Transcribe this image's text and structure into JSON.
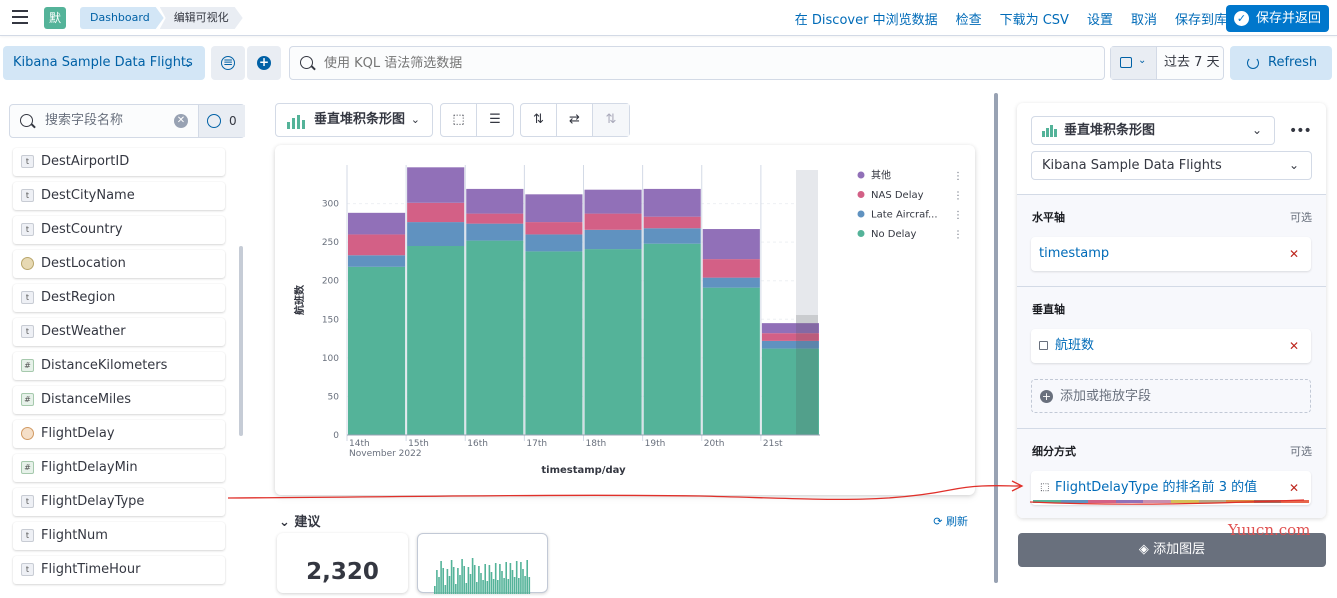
{
  "header": {
    "app_badge": "默",
    "breadcrumbs": [
      "Dashboard",
      "编辑可视化"
    ],
    "links": [
      "在 Discover 中浏览数据",
      "检查",
      "下载为 CSV",
      "设置",
      "取消",
      "保存到库"
    ],
    "save_return": "保存并返回"
  },
  "filterbar": {
    "data_view": "Kibana Sample Data Flights",
    "query_placeholder": "使用 KQL 语法筛选数据",
    "time_range": "过去 7 天",
    "refresh": "Refresh"
  },
  "field_list": {
    "search_placeholder": "搜索字段名称",
    "filter_count": "0",
    "fields": [
      {
        "name": "DestAirportID",
        "type": "t"
      },
      {
        "name": "DestCityName",
        "type": "t"
      },
      {
        "name": "DestCountry",
        "type": "t"
      },
      {
        "name": "DestLocation",
        "type": "geo"
      },
      {
        "name": "DestRegion",
        "type": "t"
      },
      {
        "name": "DestWeather",
        "type": "t"
      },
      {
        "name": "DistanceKilometers",
        "type": "#"
      },
      {
        "name": "DistanceMiles",
        "type": "#"
      },
      {
        "name": "FlightDelay",
        "type": "bool"
      },
      {
        "name": "FlightDelayMin",
        "type": "#"
      },
      {
        "name": "FlightDelayType",
        "type": "t"
      },
      {
        "name": "FlightNum",
        "type": "t"
      },
      {
        "name": "FlightTimeHour",
        "type": "t"
      }
    ]
  },
  "workspace": {
    "chart_type": "垂直堆积条形图",
    "suggestions_title": "建议",
    "suggestions_refresh": "刷新",
    "suggestion_metric": "2,320"
  },
  "chart_data": {
    "type": "bar",
    "stacked": true,
    "xlabel": "timestamp/day",
    "ylabel": "航班数",
    "ylim": [
      0,
      350
    ],
    "yticks": [
      0,
      50,
      100,
      150,
      200,
      250,
      300
    ],
    "categories": [
      "14th",
      "15th",
      "16th",
      "17th",
      "18th",
      "19th",
      "20th",
      "21st"
    ],
    "x_sublabel": "November 2022",
    "series": [
      {
        "name": "No Delay",
        "color": "#54b399",
        "values": [
          218,
          245,
          252,
          238,
          241,
          248,
          191,
          112
        ]
      },
      {
        "name": "Late Aircraf...",
        "color": "#6092c0",
        "values": [
          15,
          31,
          22,
          22,
          25,
          20,
          13,
          10
        ]
      },
      {
        "name": "NAS Delay",
        "color": "#d36086",
        "values": [
          27,
          25,
          13,
          16,
          21,
          15,
          24,
          10
        ]
      },
      {
        "name": "其他",
        "color": "#9170b8",
        "values": [
          28,
          46,
          32,
          36,
          31,
          36,
          39,
          13
        ]
      }
    ],
    "legend": [
      "其他",
      "NAS Delay",
      "Late Aircraf...",
      "No Delay"
    ],
    "legend_position": "right",
    "highlighted_category": "21st"
  },
  "config_panel": {
    "chart_type": "垂直堆积条形图",
    "data_view": "Kibana Sample Data Flights",
    "horizontal_axis": {
      "title": "水平轴",
      "optional": "可选",
      "field": "timestamp"
    },
    "vertical_axis": {
      "title": "垂直轴",
      "field": "航班数",
      "add_field": "添加或拖放字段"
    },
    "breakdown": {
      "title": "细分方式",
      "optional": "可选",
      "field": "FlightDelayType 的排名前 3 的值"
    },
    "add_layer": "添加图层",
    "palette": [
      "#54b399",
      "#6092c0",
      "#d36086",
      "#9170b8",
      "#ca8eae",
      "#d6bf57",
      "#b9a888",
      "#da8b45",
      "#aa6556",
      "#e7664c"
    ]
  },
  "watermark": "Yuucn.com"
}
